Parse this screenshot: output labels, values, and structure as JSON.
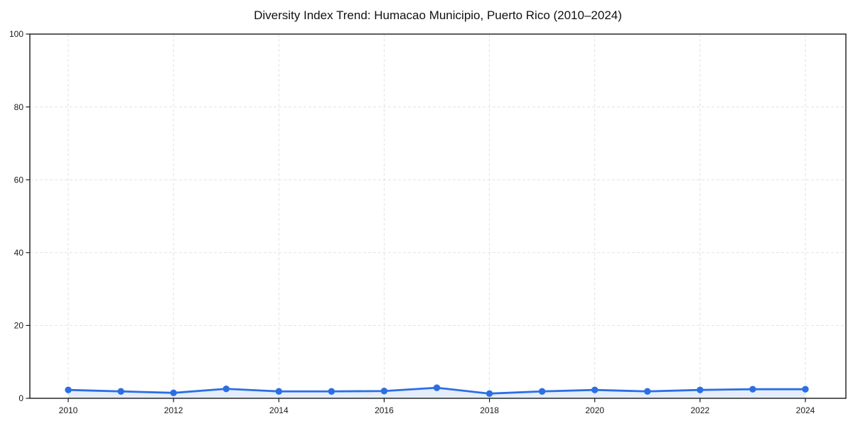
{
  "chart_data": {
    "type": "line",
    "title": "Diversity Index Trend: Humacao Municipio, Puerto Rico (2010–2024)",
    "xlabel": "",
    "ylabel": "",
    "x": [
      2010,
      2011,
      2012,
      2013,
      2014,
      2015,
      2016,
      2017,
      2018,
      2019,
      2020,
      2021,
      2022,
      2023,
      2024
    ],
    "values": [
      2.3,
      1.9,
      1.5,
      2.6,
      1.9,
      1.9,
      2.0,
      2.9,
      1.3,
      1.9,
      2.3,
      1.9,
      2.3,
      2.5,
      2.5
    ],
    "xticks": [
      2010,
      2012,
      2014,
      2016,
      2018,
      2020,
      2022,
      2024
    ],
    "yticks": [
      0,
      20,
      40,
      60,
      80,
      100
    ],
    "ylim": [
      0,
      100
    ],
    "grid": true,
    "grid_style": "dashed",
    "legend": null,
    "marker": "circle",
    "colors": {
      "line": "#2b6fe3",
      "marker": "#2b6fe3",
      "area_fill": "#2b6fe3",
      "area_fill_opacity": 0.12,
      "grid": "#e2e2e2",
      "spine": "#1a1a1a",
      "tick_text": "#1a1a1a",
      "title_text": "#111111",
      "background": "#ffffff"
    }
  }
}
